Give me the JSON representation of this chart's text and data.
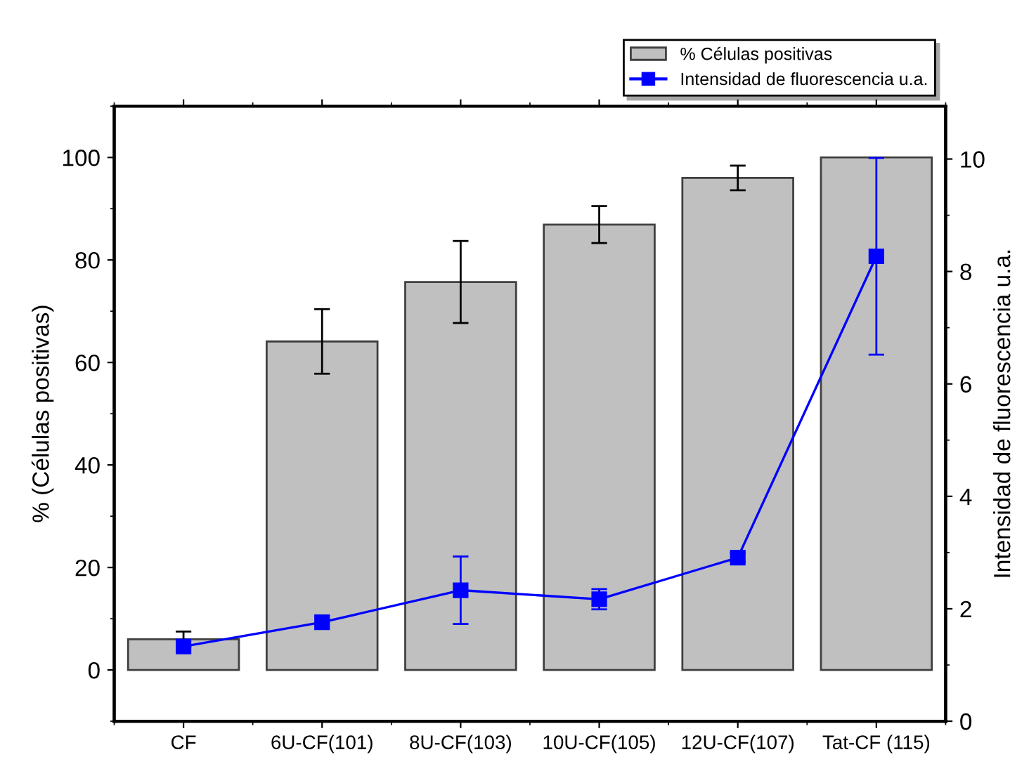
{
  "chart_data": {
    "type": "bar",
    "ylabel": "% (Células positivas)",
    "y2label": "Intensidad de fluorescencia u.a.",
    "categories": [
      "CF",
      "6U-CF(101)",
      "8U-CF(103)",
      "10U-CF(105)",
      "12U-CF(107)",
      "Tat-CF (115)"
    ],
    "series": [
      {
        "name": "% Células positivas",
        "color": "#c0c0c0",
        "values": [
          6,
          64.1,
          75.7,
          86.9,
          96,
          100
        ],
        "errors": [
          1.5,
          6.3,
          8,
          3.6,
          2.4,
          null
        ]
      },
      {
        "name": "Intensidad de fluorescencia u.a.",
        "type": "line",
        "axis": "y2",
        "color": "#0000ff",
        "marker": "square",
        "line_style": "solid",
        "values": [
          1.33,
          1.76,
          2.33,
          2.17,
          2.91,
          8.27
        ],
        "errors": [
          null,
          null,
          0.6,
          0.18,
          0.08,
          1.75
        ]
      }
    ],
    "ylim": [
      -10,
      110
    ],
    "yticks": [
      0,
      20,
      40,
      60,
      80,
      100
    ],
    "y2lim": [
      0,
      10.94
    ],
    "y2ticks": [
      0,
      2,
      4,
      6,
      8,
      10
    ],
    "grid": false,
    "legend": "top right"
  }
}
